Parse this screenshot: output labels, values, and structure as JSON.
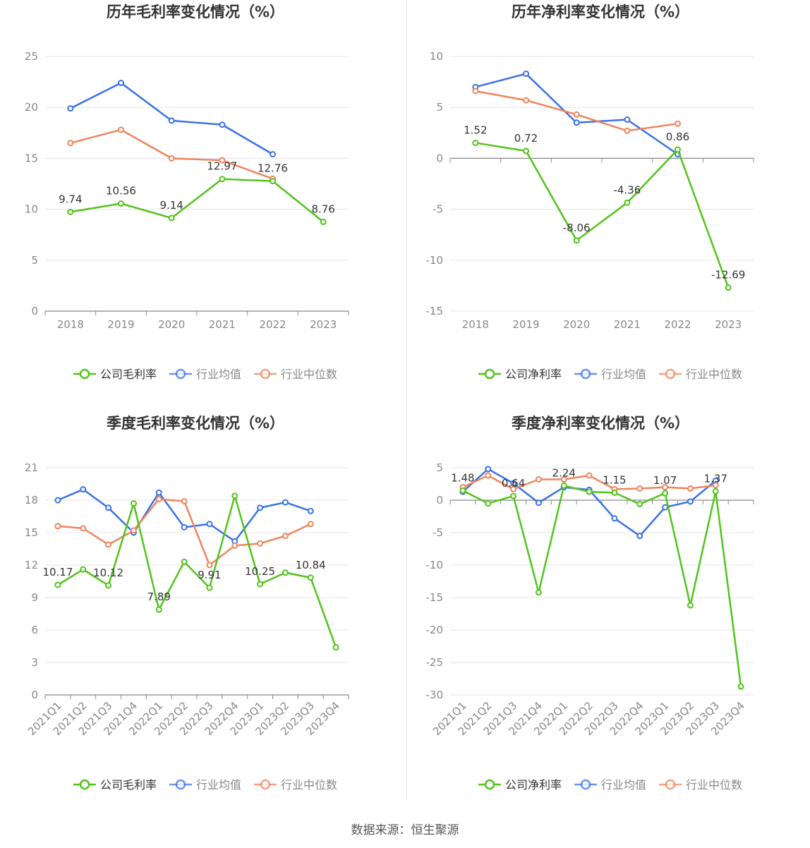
{
  "colors": {
    "company": "#52c41a",
    "avg": "#3a72e8",
    "median": "#f0845c",
    "grid": "#e6e6ee",
    "axis": "#999999",
    "text": "#888888",
    "label": "#333333",
    "title": "#333333"
  },
  "source": "数据来源：恒生聚源",
  "chart_data": [
    {
      "type": "line",
      "title": "历年毛利率变化情况（%）",
      "categories": [
        "2018",
        "2019",
        "2020",
        "2021",
        "2022",
        "2023"
      ],
      "ylim": [
        0,
        25
      ],
      "yticks": [
        0,
        5,
        10,
        15,
        20,
        25
      ],
      "yticklabels": [
        "0",
        "5",
        "10",
        "15",
        "20",
        "25"
      ],
      "tick_rotate": false,
      "series": [
        {
          "name": "公司毛利率",
          "key": "company",
          "values": [
            9.74,
            10.56,
            9.14,
            12.97,
            12.76,
            8.76
          ],
          "labels": [
            "9.74",
            "10.56",
            "9.14",
            "12.97",
            "12.76",
            "8.76"
          ]
        },
        {
          "name": "行业均值",
          "key": "avg",
          "values": [
            19.9,
            22.4,
            18.7,
            18.3,
            15.4,
            null
          ]
        },
        {
          "name": "行业中位数",
          "key": "median",
          "values": [
            16.5,
            17.8,
            15.0,
            14.8,
            13.0,
            null
          ]
        }
      ]
    },
    {
      "type": "line",
      "title": "历年净利率变化情况（%）",
      "categories": [
        "2018",
        "2019",
        "2020",
        "2021",
        "2022",
        "2023"
      ],
      "ylim": [
        -15,
        10
      ],
      "yticks": [
        -15,
        -10,
        -5,
        0,
        5,
        10
      ],
      "yticklabels": [
        "-15",
        "-10",
        "-5",
        "0",
        "5",
        "10"
      ],
      "tick_rotate": false,
      "series": [
        {
          "name": "公司净利率",
          "key": "company",
          "values": [
            1.52,
            0.72,
            -8.06,
            -4.36,
            0.86,
            -12.69
          ],
          "labels": [
            "1.52",
            "0.72",
            "-8.06",
            "-4.36",
            "0.86",
            "-12.69"
          ]
        },
        {
          "name": "行业均值",
          "key": "avg",
          "values": [
            7.0,
            8.3,
            3.5,
            3.8,
            0.4,
            null
          ]
        },
        {
          "name": "行业中位数",
          "key": "median",
          "values": [
            6.6,
            5.7,
            4.3,
            2.7,
            3.4,
            null
          ]
        }
      ]
    },
    {
      "type": "line",
      "title": "季度毛利率变化情况（%）",
      "categories": [
        "2021Q1",
        "2021Q2",
        "2021Q3",
        "2021Q4",
        "2022Q1",
        "2022Q2",
        "2022Q3",
        "2022Q4",
        "2023Q1",
        "2023Q2",
        "2023Q3",
        "2023Q4"
      ],
      "ylim": [
        0,
        21
      ],
      "yticks": [
        0,
        3,
        6,
        9,
        12,
        15,
        18,
        21
      ],
      "yticklabels": [
        "0",
        "3",
        "6",
        "9",
        "12",
        "15",
        "18",
        "21"
      ],
      "tick_rotate": true,
      "series": [
        {
          "name": "公司毛利率",
          "key": "company",
          "values": [
            10.17,
            11.6,
            10.12,
            17.7,
            7.89,
            12.3,
            9.91,
            18.4,
            10.25,
            11.3,
            10.84,
            4.4
          ],
          "labels": [
            "10.17",
            "",
            "10.12",
            "",
            "7.89",
            "",
            "9.91",
            "",
            "10.25",
            "",
            "10.84",
            ""
          ]
        },
        {
          "name": "行业均值",
          "key": "avg",
          "values": [
            18.0,
            19.0,
            17.3,
            15.0,
            18.7,
            15.5,
            15.8,
            14.2,
            17.3,
            17.8,
            17.0,
            null
          ]
        },
        {
          "name": "行业中位数",
          "key": "median",
          "values": [
            15.6,
            15.4,
            13.9,
            15.2,
            18.1,
            17.9,
            12.0,
            13.8,
            14.0,
            14.7,
            15.8,
            null
          ]
        }
      ]
    },
    {
      "type": "line",
      "title": "季度净利率变化情况（%）",
      "categories": [
        "2021Q1",
        "2021Q2",
        "2021Q3",
        "2021Q4",
        "2022Q1",
        "2022Q2",
        "2022Q3",
        "2022Q4",
        "2023Q1",
        "2023Q2",
        "2023Q3",
        "2023Q4"
      ],
      "ylim": [
        -30,
        5
      ],
      "yticks": [
        -30,
        -25,
        -20,
        -15,
        -10,
        -5,
        0,
        5
      ],
      "yticklabels": [
        "-30",
        "-25",
        "-20",
        "-15",
        "-10",
        "-5",
        "0",
        "5"
      ],
      "tick_rotate": true,
      "series": [
        {
          "name": "公司净利率",
          "key": "company",
          "values": [
            1.48,
            -0.5,
            0.64,
            -14.2,
            2.24,
            1.3,
            1.15,
            -0.6,
            1.07,
            -16.2,
            1.37,
            -28.7
          ],
          "labels": [
            "1.48",
            "",
            "0.64",
            "",
            "2.24",
            "",
            "1.15",
            "",
            "1.07",
            "",
            "1.37",
            ""
          ]
        },
        {
          "name": "行业均值",
          "key": "avg",
          "values": [
            1.3,
            4.8,
            2.6,
            -0.4,
            2.0,
            1.6,
            -2.8,
            -5.5,
            -1.1,
            -0.2,
            3.0,
            null
          ]
        },
        {
          "name": "行业中位数",
          "key": "median",
          "values": [
            2.0,
            3.8,
            1.7,
            3.2,
            3.2,
            3.8,
            1.7,
            1.8,
            2.0,
            1.8,
            2.3,
            null
          ]
        }
      ]
    }
  ]
}
